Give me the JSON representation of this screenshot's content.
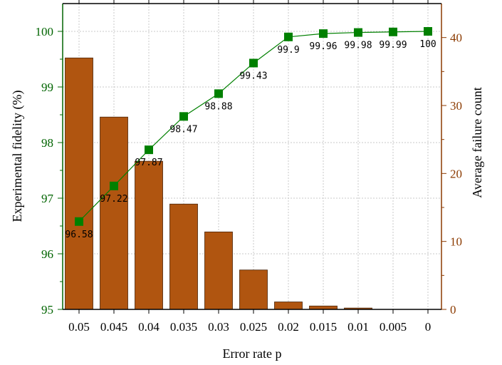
{
  "chart_data": {
    "type": "bar+line",
    "xlabel": "Error rate p",
    "categories": [
      "0.05",
      "0.045",
      "0.04",
      "0.035",
      "0.03",
      "0.025",
      "0.02",
      "0.015",
      "0.01",
      "0.005",
      "0"
    ],
    "bars": {
      "axis": "right",
      "values": [
        37,
        28.3,
        21.8,
        15.5,
        11.4,
        5.8,
        1.1,
        0.5,
        0.2,
        0,
        0
      ],
      "color": "#b05510"
    },
    "line": {
      "axis": "left",
      "values": [
        96.58,
        97.22,
        97.87,
        98.47,
        98.88,
        99.43,
        99.9,
        99.96,
        99.98,
        99.99,
        100
      ],
      "labels": [
        "96.58",
        "97.22",
        "97.87",
        "98.47",
        "98.88",
        "99.43",
        "99.9",
        "99.96",
        "99.98",
        "99.99",
        "100"
      ],
      "color": "#008000"
    },
    "left_axis": {
      "label": "Experimental fidelity (%)",
      "ylim": [
        95,
        100.5
      ],
      "ticks": [
        "95",
        "96",
        "97",
        "98",
        "99",
        "100"
      ],
      "color": "#006400"
    },
    "right_axis": {
      "label": "Average failure count",
      "ylim": [
        0,
        45
      ],
      "ticks": [
        "0",
        "10",
        "20",
        "30",
        "40"
      ],
      "color": "#8b3a00"
    },
    "grid": true
  }
}
